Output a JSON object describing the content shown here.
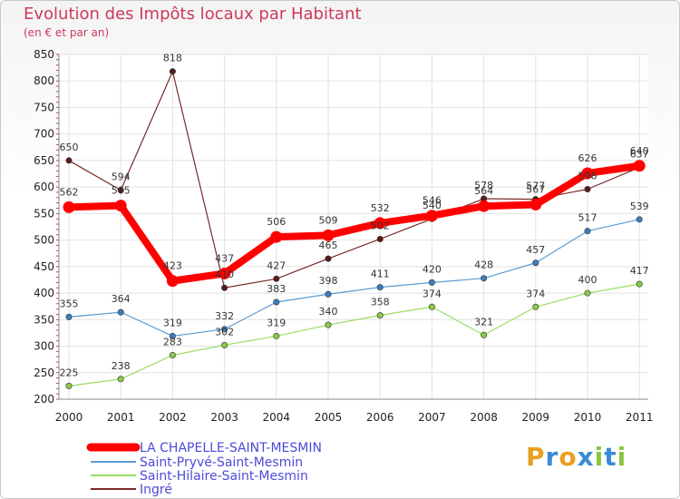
{
  "chart_data": {
    "type": "line",
    "title": "Evolution des Impôts locaux par Habitant",
    "subtitle": "(en € et par an)",
    "categories": [
      "2000",
      "2001",
      "2002",
      "2003",
      "2004",
      "2005",
      "2006",
      "2007",
      "2008",
      "2009",
      "2010",
      "2011"
    ],
    "ylim": [
      200,
      850
    ],
    "yticks": [
      200,
      250,
      300,
      350,
      400,
      450,
      500,
      550,
      600,
      650,
      700,
      750,
      800,
      850
    ],
    "grid": true,
    "legend_position": "bottom-left",
    "series": [
      {
        "name": "LA CHAPELLE-SAINT-MESMIN",
        "color": "#ff0000",
        "values": [
          562,
          565,
          423,
          437,
          506,
          509,
          532,
          546,
          564,
          567,
          626,
          640
        ]
      },
      {
        "name": "Saint-Pryvé-Saint-Mesmin",
        "color": "#5a9bd5",
        "values": [
          355,
          364,
          319,
          332,
          383,
          398,
          411,
          420,
          428,
          457,
          517,
          539
        ]
      },
      {
        "name": "Saint-Hilaire-Saint-Mesmin",
        "color": "#99dd66",
        "values": [
          225,
          238,
          283,
          302,
          319,
          340,
          358,
          374,
          321,
          374,
          400,
          417
        ]
      },
      {
        "name": "Ingré",
        "color": "#7a2a2a",
        "values": [
          650,
          594,
          818,
          410,
          427,
          465,
          502,
          540,
          578,
          577,
          596,
          637
        ]
      }
    ]
  },
  "logo": {
    "letters": [
      "P",
      "r",
      "o",
      "x",
      "i",
      "t",
      "i"
    ],
    "colors": [
      "#e8a020",
      "#3a8ad8",
      "#e8a020",
      "#3a8ad8",
      "#88c840",
      "#3a8ad8",
      "#88c840"
    ]
  }
}
